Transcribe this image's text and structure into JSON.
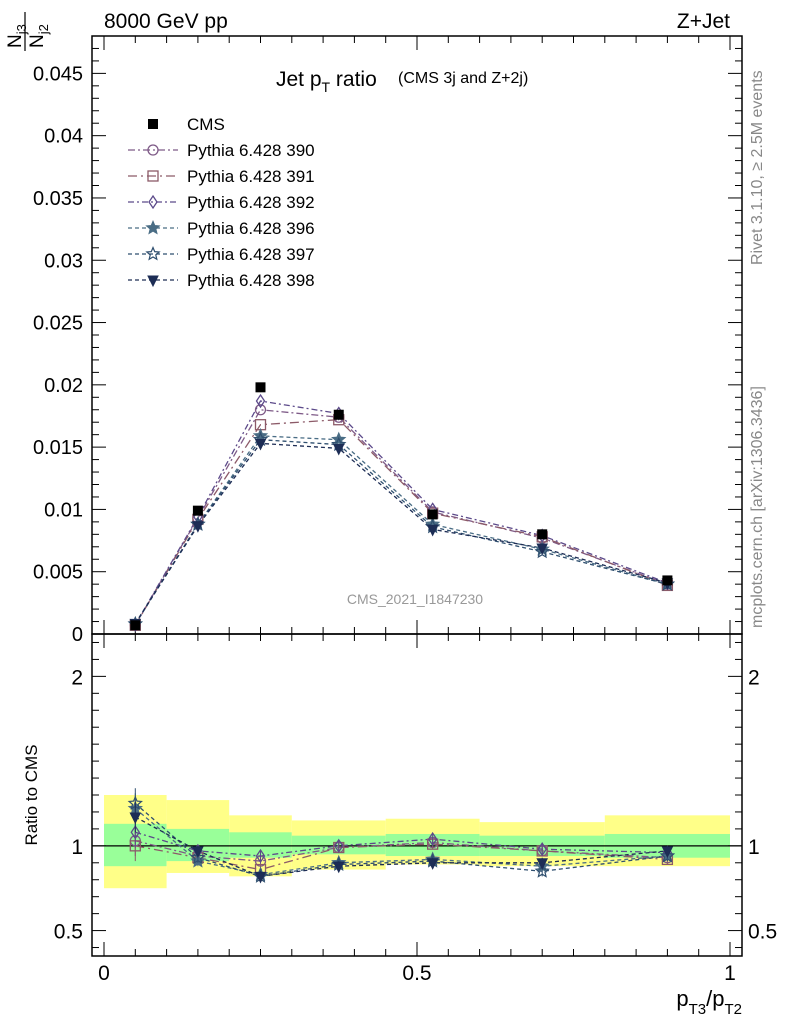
{
  "header": {
    "left": "8000 GeV pp",
    "right": "Z+Jet"
  },
  "side": {
    "rivet": "Rivet 3.1.10, ≥ 2.5M events",
    "mcplots": "mcplots.cern.ch [arXiv:1306.3436]"
  },
  "chart_data": {
    "type": "line",
    "title": "Jet p",
    "title_sub": "T",
    "title_rest": " ratio",
    "title_note": "(CMS 3j and Z+2j)",
    "watermark": "CMS_2021_I1847230",
    "ylabel_main": {
      "num": "N",
      "num_sub": "j3",
      "den": "N",
      "den_sub": "j2"
    },
    "ylabel_ratio": "Ratio to CMS",
    "xlabel": {
      "p1": "p",
      "s1": "T3",
      "p2": "/p",
      "s2": "T2"
    },
    "xlim": [
      0,
      1
    ],
    "ylim_main": [
      0,
      0.048
    ],
    "ylim_ratio": [
      0.35,
      2.25
    ],
    "x_ticks": [
      {
        "v": 0,
        "label": "0"
      },
      {
        "v": 0.5,
        "label": "0.5"
      },
      {
        "v": 1,
        "label": "1"
      }
    ],
    "y_ticks_main": [
      {
        "v": 0,
        "label": "0"
      },
      {
        "v": 0.005,
        "label": "0.005"
      },
      {
        "v": 0.01,
        "label": "0.01"
      },
      {
        "v": 0.015,
        "label": "0.015"
      },
      {
        "v": 0.02,
        "label": "0.02"
      },
      {
        "v": 0.025,
        "label": "0.025"
      },
      {
        "v": 0.03,
        "label": "0.03"
      },
      {
        "v": 0.035,
        "label": "0.035"
      },
      {
        "v": 0.04,
        "label": "0.04"
      },
      {
        "v": 0.045,
        "label": "0.045"
      }
    ],
    "y_ticks_ratio": [
      {
        "v": 0.5,
        "label": "0.5"
      },
      {
        "v": 1,
        "label": "1"
      },
      {
        "v": 2,
        "label": "2"
      }
    ],
    "x": [
      0.05,
      0.15,
      0.25,
      0.375,
      0.525,
      0.7,
      0.9
    ],
    "bin_edges": [
      0,
      0.1,
      0.2,
      0.3,
      0.45,
      0.6,
      0.8,
      1.0
    ],
    "band_inner": [
      [
        0.88,
        1.13
      ],
      [
        0.91,
        1.1
      ],
      [
        0.93,
        1.08
      ],
      [
        0.95,
        1.06
      ],
      [
        0.94,
        1.07
      ],
      [
        0.94,
        1.06
      ],
      [
        0.93,
        1.07
      ]
    ],
    "band_outer": [
      [
        0.75,
        1.3
      ],
      [
        0.84,
        1.27
      ],
      [
        0.82,
        1.18
      ],
      [
        0.86,
        1.15
      ],
      [
        0.89,
        1.16
      ],
      [
        0.88,
        1.14
      ],
      [
        0.88,
        1.18
      ]
    ],
    "data": {
      "name": "CMS",
      "values": [
        0.0007,
        0.0099,
        0.0198,
        0.0176,
        0.0096,
        0.008,
        0.0043
      ]
    },
    "series": [
      {
        "name": "Pythia 6.428 390",
        "color": "#7e5a87",
        "marker": "circle",
        "dash": "7,3,2,3",
        "values": [
          0.00072,
          0.0093,
          0.018,
          0.0174,
          0.0098,
          0.0077,
          0.004
        ],
        "ratio": [
          1.03,
          0.94,
          0.91,
          0.99,
          1.02,
          0.97,
          0.93
        ]
      },
      {
        "name": "Pythia 6.428 391",
        "color": "#8c5a68",
        "marker": "square",
        "dash": "9,4,2,4",
        "values": [
          0.0007,
          0.0092,
          0.0168,
          0.0172,
          0.0097,
          0.0078,
          0.0039
        ],
        "ratio": [
          1.0,
          0.93,
          0.86,
          0.99,
          1.01,
          0.97,
          0.92
        ]
      },
      {
        "name": "Pythia 6.428 392",
        "color": "#5c4a8a",
        "marker": "diamond",
        "dash": "6,3,2,3",
        "values": [
          0.00075,
          0.0094,
          0.0187,
          0.0177,
          0.01,
          0.0079,
          0.0041
        ],
        "ratio": [
          1.08,
          0.97,
          0.94,
          1.0,
          1.04,
          0.98,
          0.96
        ]
      },
      {
        "name": "Pythia 6.428 396",
        "color": "#4a6d85",
        "marker": "star",
        "dash": "4,3",
        "values": [
          0.0008,
          0.0088,
          0.0159,
          0.0156,
          0.0088,
          0.0068,
          0.004
        ],
        "ratio": [
          1.22,
          0.91,
          0.83,
          0.9,
          0.92,
          0.88,
          0.94
        ]
      },
      {
        "name": "Pythia 6.428 397",
        "color": "#2f4f6f",
        "marker": "open-star",
        "dash": "4,3",
        "values": [
          0.0008,
          0.0088,
          0.0156,
          0.0152,
          0.0086,
          0.0066,
          0.004
        ],
        "ratio": [
          1.25,
          0.93,
          0.82,
          0.89,
          0.91,
          0.85,
          0.94
        ]
      },
      {
        "name": "Pythia 6.428 398",
        "color": "#1d2d55",
        "marker": "triangle-down",
        "dash": "4,3",
        "values": [
          0.00085,
          0.0087,
          0.0153,
          0.0149,
          0.0084,
          0.0069,
          0.0041
        ],
        "ratio": [
          1.17,
          0.97,
          0.82,
          0.88,
          0.9,
          0.9,
          0.97
        ]
      }
    ],
    "colors": {
      "band_inner": "#99ff99",
      "band_outer": "#ffff88"
    }
  }
}
